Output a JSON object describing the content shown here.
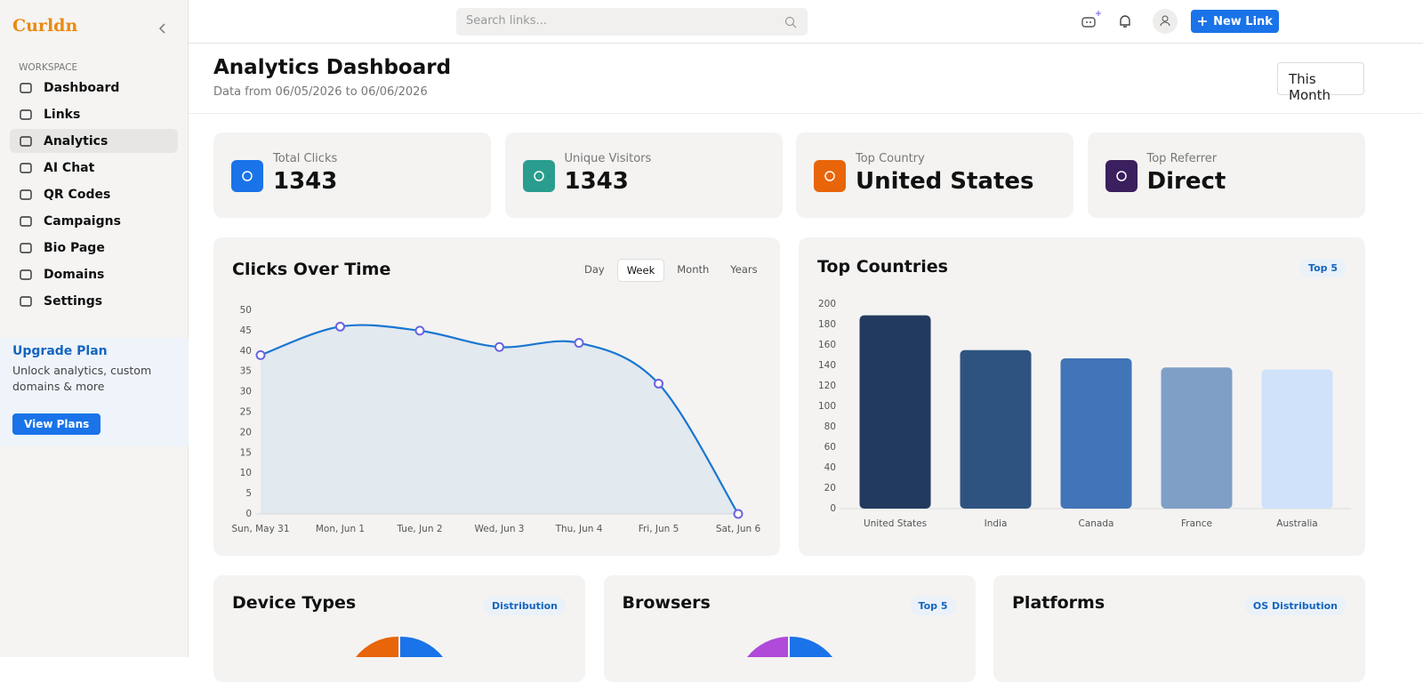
{
  "sidebar": {
    "brand": "Curldn",
    "section": "WORKSPACE",
    "nav": [
      "Dashboard",
      "Links",
      "Analytics",
      "AI Chat",
      "QR Codes",
      "Campaigns",
      "Bio Page",
      "Domains",
      "Settings"
    ],
    "upgrade": {
      "title": "Upgrade Plan",
      "text": "Unlock analytics, custom domains & more",
      "button": "View Plans"
    }
  },
  "topbar": {
    "search_placeholder": "Search links...",
    "new_link": "New Link"
  },
  "header": {
    "title": "Analytics Dashboard",
    "subtitle": "Data from 06/05/2026 to 06/06/2026",
    "range": "This Month"
  },
  "stats": [
    {
      "label": "Total Clicks",
      "value": 1343
    },
    {
      "label": "Unique Visitors",
      "value": 1343
    },
    {
      "label": "Top Country",
      "value": "United States"
    },
    {
      "label": "Top Referrer",
      "value": "Direct"
    }
  ],
  "chart_data": [
    {
      "type": "line",
      "title": "Clicks Over Time",
      "tabs": [
        "Day",
        "Week",
        "Month",
        "Years"
      ],
      "categories": [
        "Sun, May 31",
        "Mon, Jun 1",
        "Tue, Jun 2",
        "Wed, Jun 3",
        "Thu, Jun 4",
        "Fri, Jun 5",
        "Sat, Jun 6"
      ],
      "values": [
        39,
        46,
        45,
        41,
        42,
        32,
        0
      ],
      "color": "#1976d2",
      "marker_color": "#6b63e0",
      "ylim": [
        0,
        50
      ],
      "yticks": [
        0,
        5,
        10,
        15,
        20,
        25,
        30,
        35,
        40,
        45,
        50
      ],
      "area": true
    },
    {
      "type": "bar",
      "title": "Top Countries",
      "badge": "Top 5",
      "categories": [
        "United States",
        "India",
        "Canada",
        "France",
        "Australia"
      ],
      "values": [
        189,
        155,
        147,
        138,
        136
      ],
      "colors": [
        "#223a5e",
        "#2f5380",
        "#4274b8",
        "#7f9fc6",
        "#cfe2f9"
      ],
      "ylim": [
        0,
        200
      ],
      "yticks": [
        0,
        20,
        40,
        60,
        80,
        100,
        120,
        140,
        160,
        180,
        200
      ]
    }
  ],
  "bottom_cards": [
    {
      "title": "Device Types",
      "badge": "Distribution"
    },
    {
      "title": "Browsers",
      "badge": "Top 5"
    },
    {
      "title": "Platforms",
      "badge": "OS Distribution"
    }
  ]
}
